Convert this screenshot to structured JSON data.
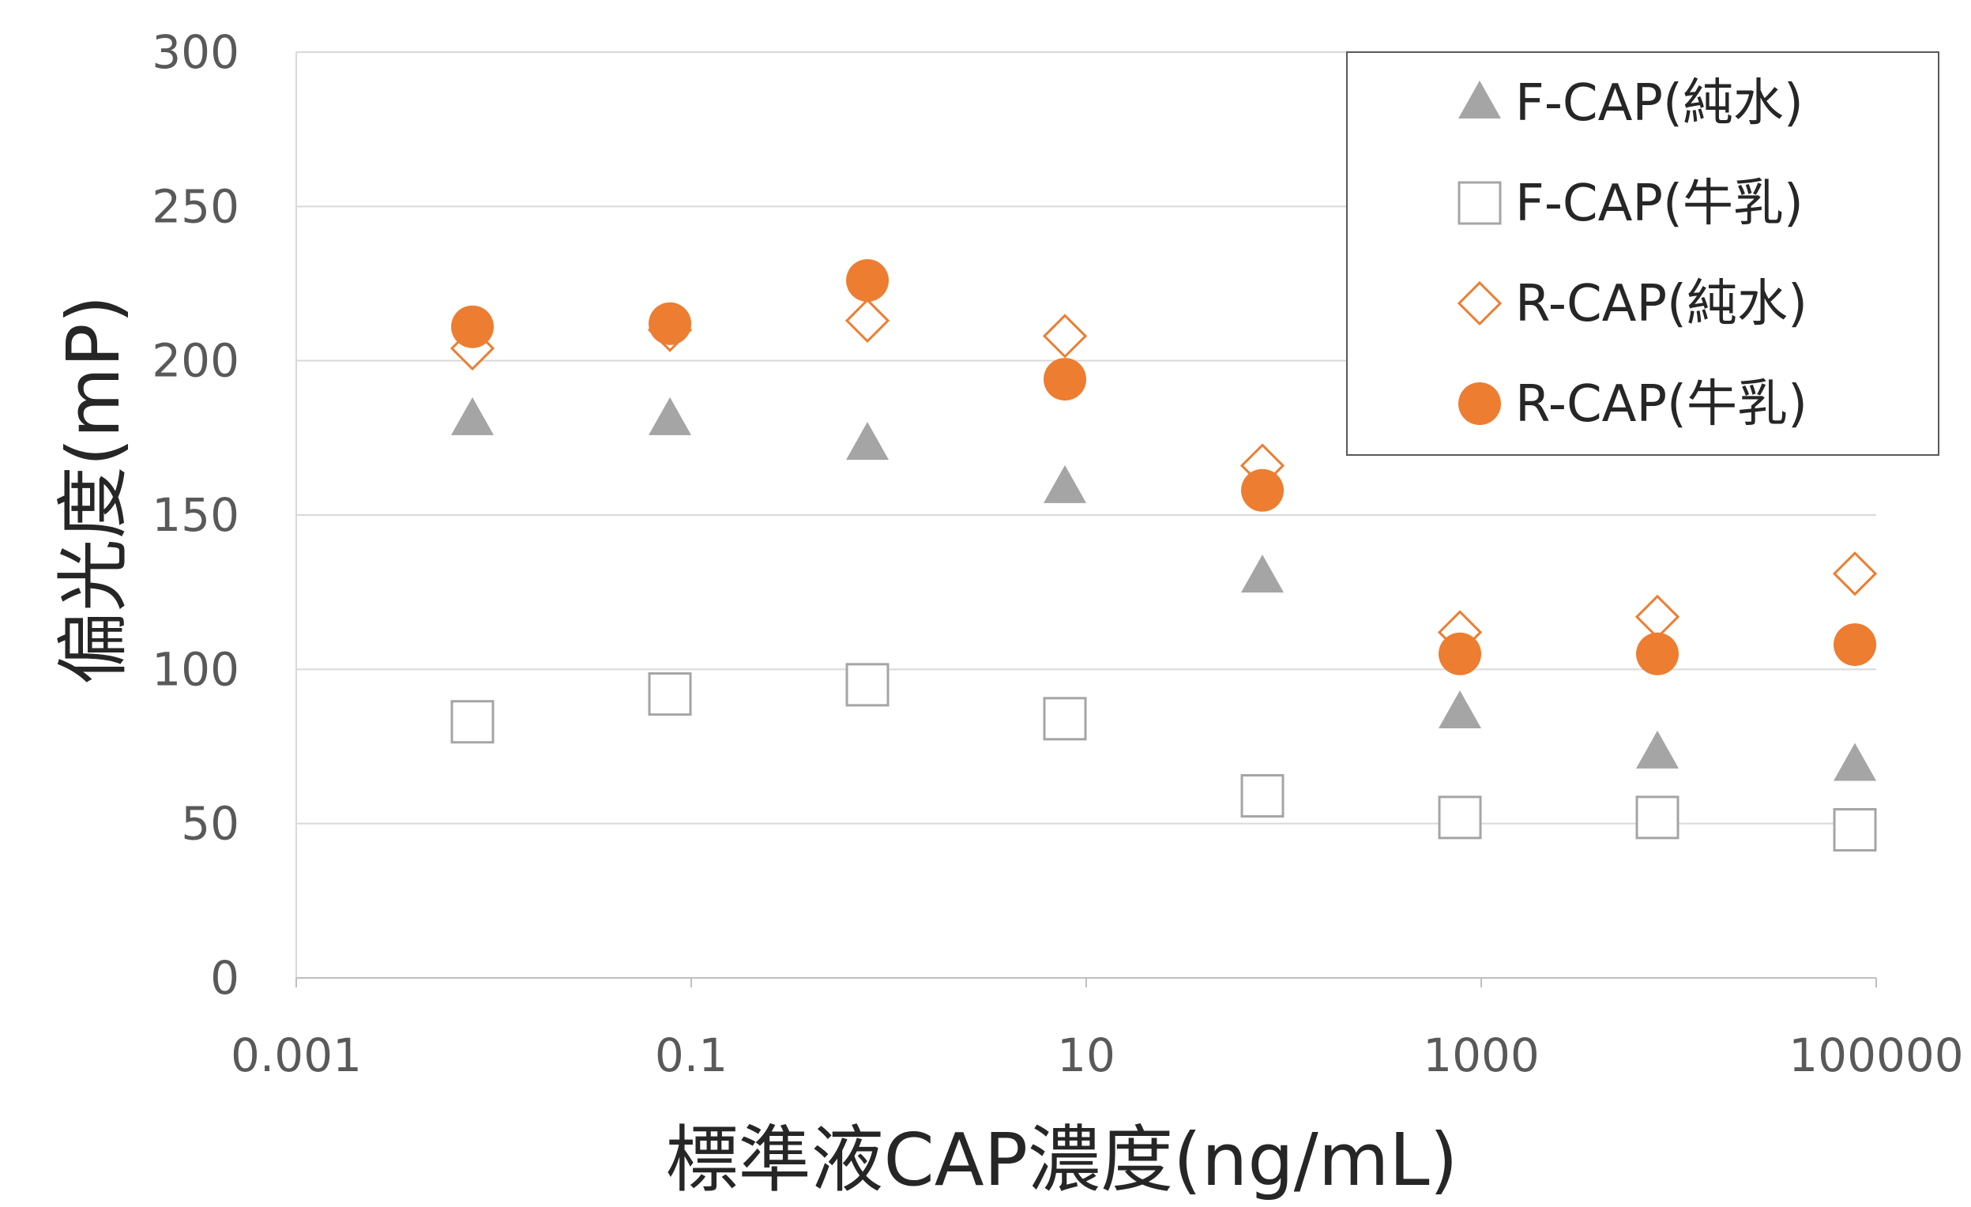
{
  "chart_data": {
    "type": "scatter",
    "xlabel": "標準液CAP濃度(ng/mL)",
    "ylabel": "偏光度(mP)",
    "xscale": "log",
    "xlim": [
      0.001,
      100000
    ],
    "ylim": [
      0,
      300
    ],
    "xticks": [
      {
        "value": 0.001,
        "label": "0.001"
      },
      {
        "value": 0.1,
        "label": "0.1"
      },
      {
        "value": 10,
        "label": "10"
      },
      {
        "value": 1000,
        "label": "1000"
      },
      {
        "value": 100000,
        "label": "100000"
      }
    ],
    "yticks": [
      {
        "value": 0,
        "label": "0"
      },
      {
        "value": 50,
        "label": "50"
      },
      {
        "value": 100,
        "label": "100"
      },
      {
        "value": 150,
        "label": "150"
      },
      {
        "value": 200,
        "label": "200"
      },
      {
        "value": 250,
        "label": "250"
      },
      {
        "value": 300,
        "label": "300"
      }
    ],
    "grid": "horizontal",
    "legend_position": "top-right",
    "x": [
      0.0078,
      0.078,
      0.78,
      7.8,
      78,
      780,
      7800,
      78000
    ],
    "series": [
      {
        "name": "F-CAP(純水)",
        "marker": "triangle-filled",
        "color": "#a5a5a5",
        "values": [
          181,
          181,
          173,
          159,
          130,
          86,
          73,
          69
        ]
      },
      {
        "name": "F-CAP(牛乳)",
        "marker": "square-open",
        "color": "#a5a5a5",
        "values": [
          83,
          92,
          95,
          84,
          59,
          52,
          52,
          48
        ]
      },
      {
        "name": "R-CAP(純水)",
        "marker": "diamond-open",
        "color": "#ed7d31",
        "values": [
          204,
          210,
          213,
          208,
          166,
          112,
          117,
          131
        ]
      },
      {
        "name": "R-CAP(牛乳)",
        "marker": "circle-filled",
        "color": "#ed7d31",
        "values": [
          211,
          212,
          226,
          194,
          158,
          105,
          105,
          108
        ]
      }
    ]
  }
}
